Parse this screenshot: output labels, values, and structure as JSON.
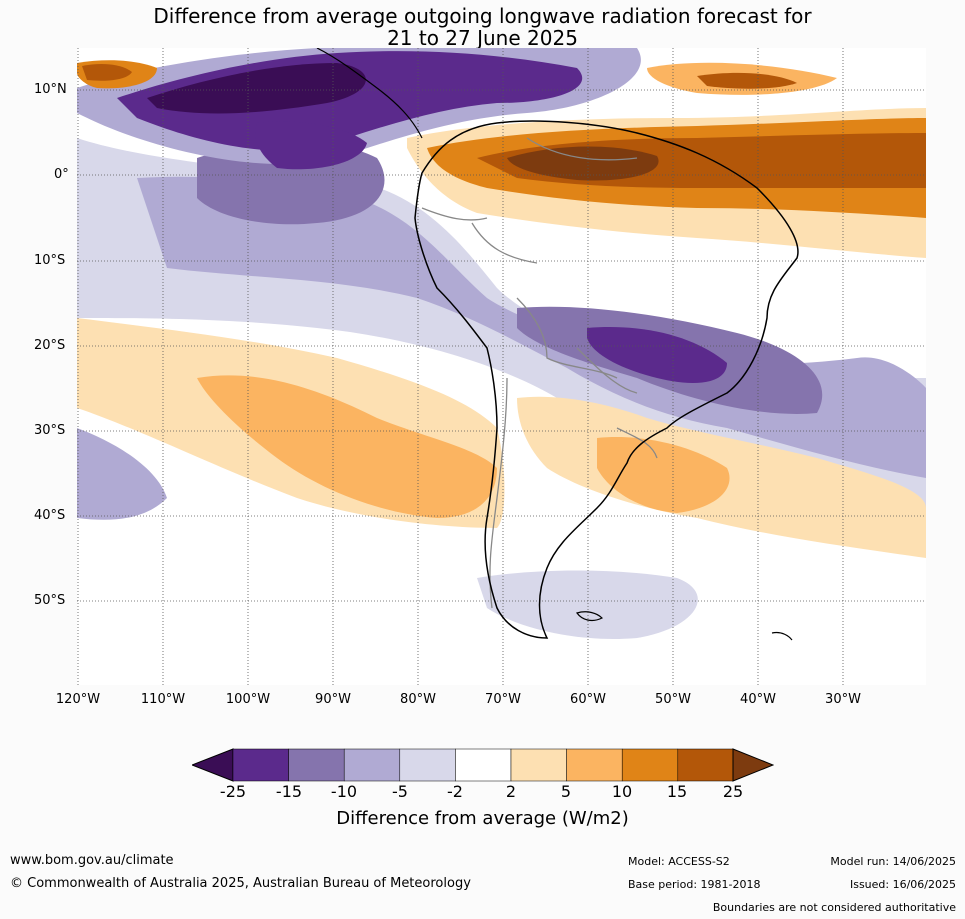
{
  "title": {
    "line1": "Difference from average outgoing longwave radiation forecast for",
    "line2": "21 to 27 June 2025"
  },
  "map": {
    "latitude_labels": [
      "10°N",
      "0°",
      "10°S",
      "20°S",
      "30°S",
      "40°S",
      "50°S"
    ],
    "longitude_labels": [
      "120°W",
      "110°W",
      "100°W",
      "90°W",
      "80°W",
      "70°W",
      "60°W",
      "50°W",
      "40°W",
      "30°W"
    ],
    "gridlines": true,
    "colors": {
      "n25": "#3a0d55",
      "n15": "#5b2a8c",
      "n10": "#8574ad",
      "n5": "#b0aad3",
      "n2": "#d8d8ea",
      "neutral": "#ffffff",
      "p2": "#fde0b2",
      "p5": "#fbb461",
      "p10": "#e08417",
      "p15": "#b35709",
      "p25": "#7d3b0f",
      "coastline": "#000000",
      "borders": "#888888"
    }
  },
  "legend": {
    "ticks": [
      "-25",
      "-15",
      "-10",
      "-5",
      "-2",
      "2",
      "5",
      "10",
      "15",
      "25"
    ],
    "colors": [
      "#3a0d55",
      "#5b2a8c",
      "#8574ad",
      "#b0aad3",
      "#d8d8ea",
      "#ffffff",
      "#fde0b2",
      "#fbb461",
      "#e08417",
      "#b35709",
      "#7d3b0f"
    ],
    "label": "Difference from average (W/m2)"
  },
  "footer": {
    "website": "www.bom.gov.au/climate",
    "copyright": "© Commonwealth of Australia 2025, Australian Bureau of Meteorology",
    "model": "Model: ACCESS-S2",
    "base_period": "Base period: 1981-2018",
    "model_run": "Model run: 14/06/2025",
    "issued": "Issued: 16/06/2025",
    "disclaimer": "Boundaries are not considered authoritative"
  }
}
